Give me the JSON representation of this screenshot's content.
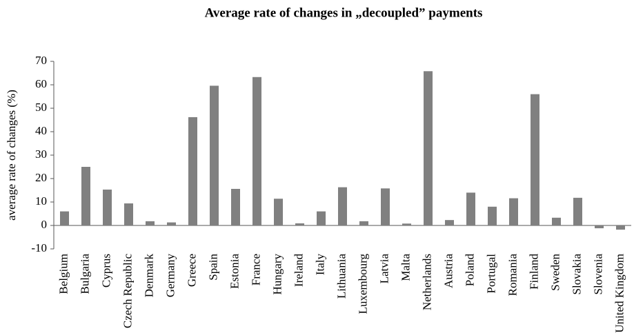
{
  "chart_data": {
    "type": "bar",
    "title": "Average rate of changes in „decoupled” payments",
    "y_label": "average rate of changes  (%)",
    "categories": [
      "Belgium",
      "Bulgaria",
      "Cyprus",
      "Czech Republic",
      "Denmark",
      "Germany",
      "Greece",
      "Spain",
      "Estonia",
      "France",
      "Hungary",
      "Ireland",
      "Italy",
      "Lithuania",
      "Luxembourg",
      "Latvia",
      "Malta",
      "Netherlands",
      "Austria",
      "Poland",
      "Portugal",
      "Romania",
      "Finland",
      "Sweden",
      "Slovakia",
      "Slovenia",
      "United Kingdom"
    ],
    "values": [
      6,
      25,
      15.3,
      9.4,
      1.8,
      1.3,
      46.2,
      59.6,
      15.6,
      63.3,
      11.4,
      0.9,
      6,
      16.3,
      1.8,
      15.8,
      0.8,
      65.8,
      2.3,
      14,
      8,
      11.6,
      56,
      3.3,
      11.8,
      -1.2,
      -1.8
    ],
    "color": "#808080",
    "ylim": [
      -10,
      70
    ],
    "yticks": [
      -10,
      0,
      10,
      20,
      30,
      40,
      50,
      60,
      70
    ],
    "grid": false
  }
}
